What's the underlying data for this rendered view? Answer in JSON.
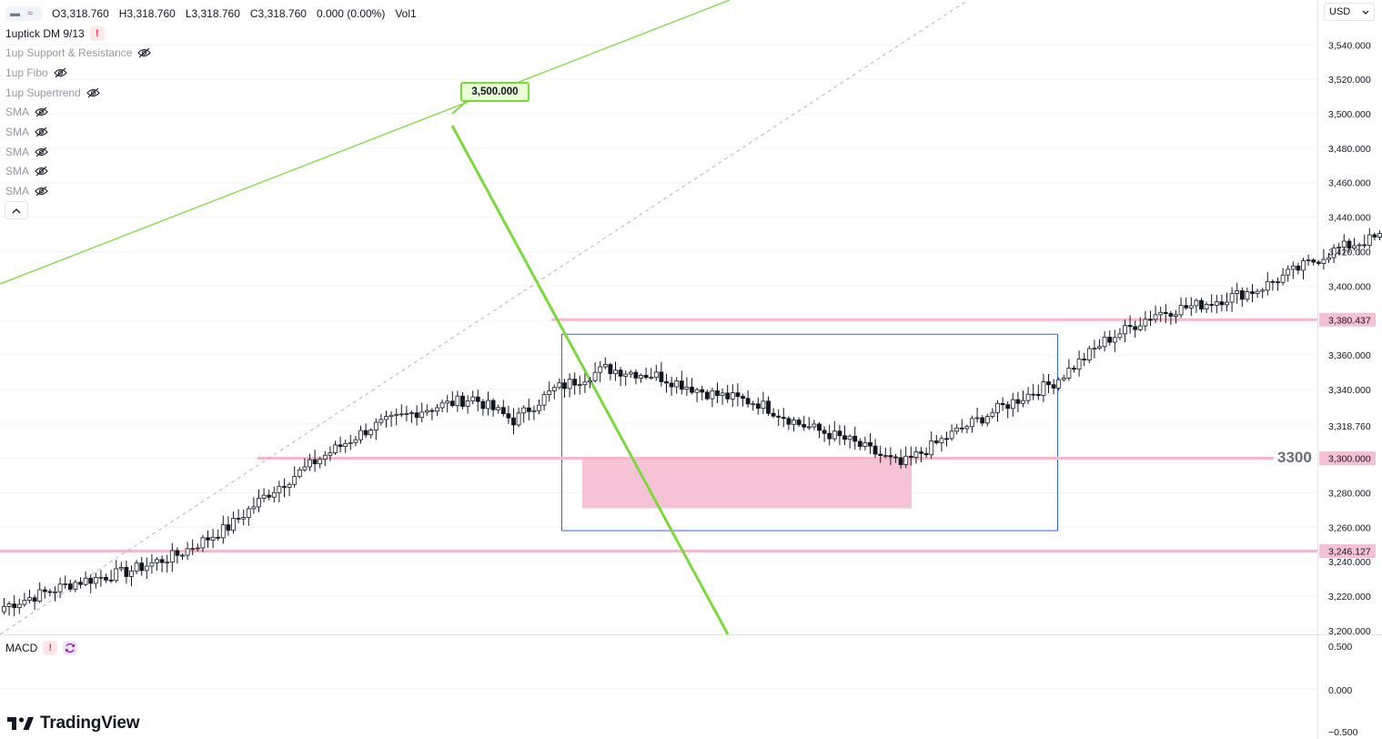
{
  "legend": {
    "ohlc": {
      "o": "O3,318.760",
      "h": "H3,318.760",
      "l": "L3,318.760",
      "c": "C3,318.760",
      "chg": "0.000 (0.00%)",
      "vol": "Vol1"
    },
    "main_indicator": "1uptick DM 9/13",
    "warn_mark": "!",
    "indicators": [
      "1up Support & Resistance",
      "1up Fibo",
      "1up Supertrend",
      "SMA",
      "SMA",
      "SMA",
      "SMA",
      "SMA"
    ]
  },
  "currency": {
    "value": "USD"
  },
  "annotations": {
    "big_label": "3300",
    "high_label": "3,500.000"
  },
  "macd": {
    "label": "MACD",
    "ticks": [
      "0.500",
      "0.000",
      "−0.500"
    ]
  },
  "brand": {
    "name": "TradingView"
  },
  "colors": {
    "up": "#ffffff",
    "down": "#131722",
    "trend": "#7cd93c",
    "zone": "#f4c0d3",
    "zone_line": "#f7b6c9",
    "box": "#2962ff",
    "dashed": "#b2b5be"
  },
  "chart_data": {
    "type": "candlestick",
    "y_axis": {
      "range": [
        3195,
        3555
      ],
      "ticks": [
        "3,540.000",
        "3,520.000",
        "3,500.000",
        "3,480.000",
        "3,460.000",
        "3,440.000",
        "3,420.000",
        "3,400.000",
        "3,360.000",
        "3,340.000",
        "3,280.000",
        "3,260.000",
        "3,240.000",
        "3,220.000",
        "3,200.000"
      ],
      "tick_values": [
        3540,
        3520,
        3500,
        3480,
        3460,
        3440,
        3420,
        3400,
        3360,
        3340,
        3280,
        3260,
        3240,
        3220,
        3200
      ]
    },
    "price_labels": [
      {
        "value": 3380.437,
        "text": "3,380.437",
        "kind": "level"
      },
      {
        "value": 3318.76,
        "text": "3,318.760",
        "kind": "last"
      },
      {
        "value": 3300.0,
        "text": "3,300.000",
        "kind": "level"
      },
      {
        "value": 3246.127,
        "text": "3,246.127",
        "kind": "level"
      }
    ],
    "horizontal_levels": [
      3380.437,
      3300.0,
      3246.127
    ],
    "anchors": [
      [
        3214,
        0
      ],
      [
        3228,
        14
      ],
      [
        3234,
        24
      ],
      [
        3244,
        34
      ],
      [
        3260,
        44
      ],
      [
        3280,
        52
      ],
      [
        3300,
        62
      ],
      [
        3318,
        72
      ],
      [
        3328,
        82
      ],
      [
        3335,
        92
      ],
      [
        3322,
        100
      ],
      [
        3340,
        108
      ],
      [
        3352,
        118
      ],
      [
        3348,
        128
      ],
      [
        3338,
        138
      ],
      [
        3332,
        148
      ],
      [
        3320,
        156
      ],
      [
        3310,
        166
      ],
      [
        3296,
        176
      ],
      [
        3314,
        186
      ],
      [
        3330,
        196
      ],
      [
        3344,
        206
      ],
      [
        3368,
        216
      ],
      [
        3384,
        226
      ],
      [
        3390,
        236
      ],
      [
        3398,
        246
      ],
      [
        3410,
        254
      ],
      [
        3422,
        262
      ],
      [
        3430,
        272
      ],
      [
        3428,
        282
      ],
      [
        3436,
        290
      ],
      [
        3458,
        298
      ],
      [
        3480,
        306
      ],
      [
        3494,
        314
      ],
      [
        3470,
        322
      ],
      [
        3450,
        330
      ],
      [
        3432,
        338
      ],
      [
        3404,
        346
      ],
      [
        3388,
        354
      ],
      [
        3360,
        362
      ],
      [
        3330,
        368
      ],
      [
        3372,
        376
      ],
      [
        3354,
        384
      ],
      [
        3328,
        392
      ],
      [
        3312,
        400
      ],
      [
        3306,
        408
      ],
      [
        3296,
        416
      ],
      [
        3284,
        424
      ],
      [
        3286,
        432
      ],
      [
        3296,
        440
      ],
      [
        3318,
        446
      ],
      [
        3346,
        454
      ],
      [
        3330,
        462
      ],
      [
        3326,
        472
      ],
      [
        3332,
        482
      ],
      [
        3330,
        490
      ],
      [
        3340,
        500
      ],
      [
        3350,
        508
      ],
      [
        3362,
        514
      ],
      [
        3350,
        520
      ],
      [
        3326,
        528
      ],
      [
        3302,
        536
      ],
      [
        3296,
        544
      ],
      [
        3300,
        552
      ],
      [
        3282,
        560
      ],
      [
        3276,
        568
      ],
      [
        3288,
        576
      ],
      [
        3300,
        584
      ],
      [
        3312,
        590
      ],
      [
        3318,
        594
      ]
    ],
    "trendlines": [
      {
        "from": [
          3480,
          "t-left"
        ],
        "to": [
          3580,
          "t-right"
        ],
        "color": "trend"
      },
      {
        "from": [
          3496,
          "peak"
        ],
        "to": [
          3200,
          "down"
        ],
        "color": "trend"
      }
    ],
    "range_box": {
      "top": 3372,
      "bottom": 3258
    },
    "zone": {
      "top": 3300,
      "bottom": 3271
    },
    "high_marker": 3500.0,
    "last_price": 3318.76,
    "macd_range": [
      -0.5,
      0.5
    ]
  }
}
